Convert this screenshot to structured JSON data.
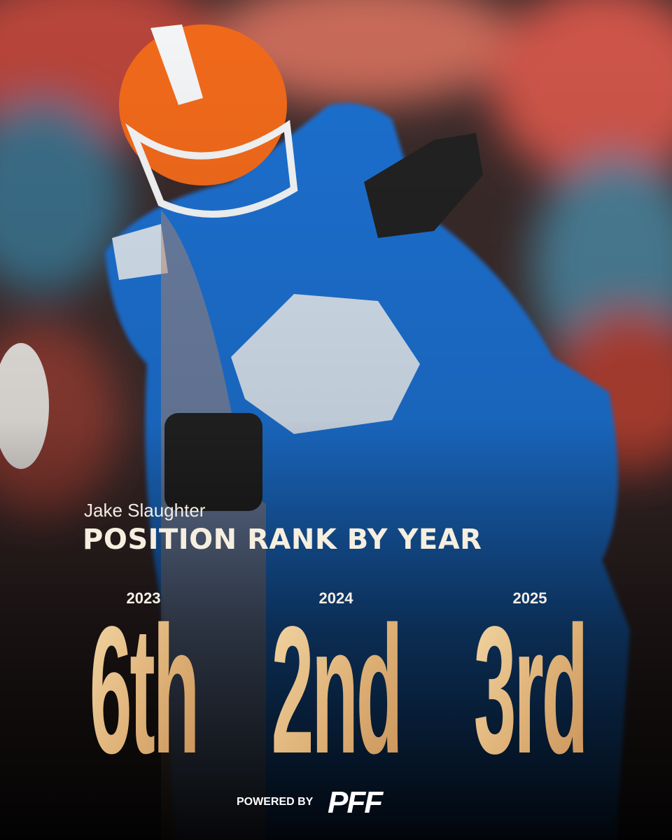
{
  "header": {
    "name": "Jake Slaughter",
    "title": "POSITION RANK BY YEAR"
  },
  "ranks": [
    {
      "year": "2023",
      "rank": "6th"
    },
    {
      "year": "2024",
      "rank": "2nd"
    },
    {
      "year": "2025",
      "rank": "3rd"
    }
  ],
  "footer": {
    "powered_by": "POWERED BY",
    "logo": "PFF"
  }
}
